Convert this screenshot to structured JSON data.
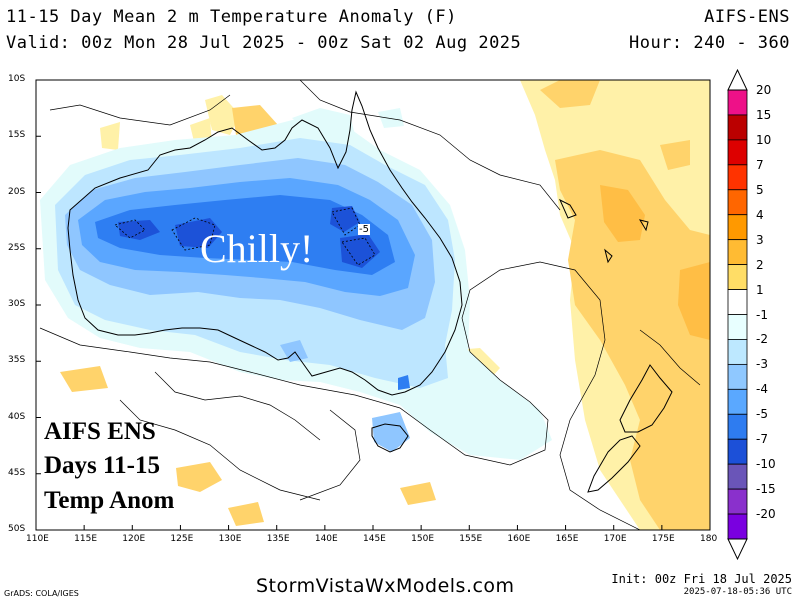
{
  "header": {
    "title": "11-15 Day Mean 2 m Temperature Anomaly (F)",
    "valid": "Valid: 00z Mon 28 Jul 2025 - 00z Sat 02 Aug 2025",
    "model": "AIFS-ENS",
    "hour": "Hour: 240 - 360"
  },
  "map": {
    "lat_labels": [
      "10S",
      "15S",
      "20S",
      "25S",
      "30S",
      "35S",
      "40S",
      "45S",
      "50S"
    ],
    "lon_labels": [
      "110E",
      "115E",
      "120E",
      "125E",
      "130E",
      "135E",
      "140E",
      "145E",
      "150E",
      "155E",
      "160E",
      "165E",
      "170E",
      "175E",
      "180"
    ],
    "contour_label": "-5",
    "callout": "Chilly!",
    "overlay": [
      "AIFS ENS",
      "Days 11-15",
      "Temp Anom"
    ]
  },
  "colorbar": {
    "levels": [
      "20",
      "15",
      "10",
      "7",
      "5",
      "4",
      "3",
      "2",
      "1",
      "-1",
      "-2",
      "-3",
      "-4",
      "-5",
      "-7",
      "-10",
      "-15",
      "-20"
    ],
    "colors": [
      "#ee1188",
      "#bb0000",
      "#dd0000",
      "#ff3300",
      "#ff6600",
      "#ff9900",
      "#ffbb33",
      "#ffdd66",
      "#ffffff",
      "#e8ffff",
      "#bde8ff",
      "#8fc8ff",
      "#5aa8ff",
      "#2e7cf0",
      "#1c50d8",
      "#6a55b8",
      "#8a30cc",
      "#7a00e0"
    ]
  },
  "footer": {
    "grads": "GrADS: COLA/IGES",
    "site": "StormVistaWxModels.com",
    "init": "Init: 00z Fri 18 Jul 2025",
    "stamp": "2025-07-18-05:36 UTC"
  }
}
